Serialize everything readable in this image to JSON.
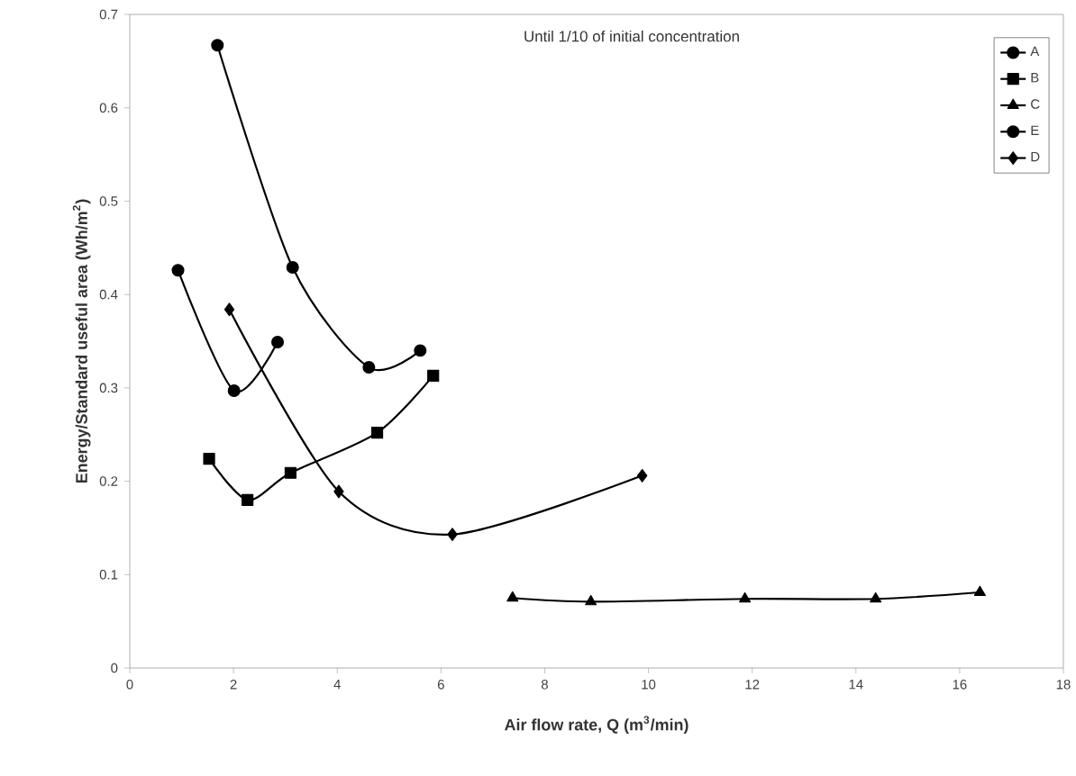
{
  "chart_data": {
    "type": "line",
    "xlabel": "Air flow rate, Q (m$^{3}$/min)",
    "ylabel": "Energy/Standard useful area (Wh/m$^{2}$)",
    "annotations": [
      "Until 1/10 of initial concentration"
    ],
    "xlim": [
      0,
      18
    ],
    "xticks": [
      0,
      2,
      4,
      6,
      8,
      10,
      12,
      14,
      16,
      18
    ],
    "ylim": [
      0,
      0.7
    ],
    "yticks": [
      0,
      0.1,
      0.2,
      0.3,
      0.4,
      0.5,
      0.6,
      0.7
    ],
    "grid": false,
    "legend": "top right",
    "series": [
      {
        "name": "A",
        "color": "#000000",
        "marker": "circle",
        "x": [
          0.93,
          2.01,
          2.85
        ],
        "values": [
          0.426,
          0.297,
          0.349
        ]
      },
      {
        "name": "B",
        "color": "#000000",
        "marker": "square",
        "x": [
          1.53,
          2.27,
          3.1,
          4.77,
          5.85
        ],
        "values": [
          0.224,
          0.18,
          0.209,
          0.252,
          0.313
        ]
      },
      {
        "name": "C",
        "color": "#000000",
        "marker": "triangle",
        "x": [
          7.38,
          8.89,
          11.86,
          14.38,
          16.39
        ],
        "values": [
          0.075,
          0.071,
          0.074,
          0.074,
          0.081
        ]
      },
      {
        "name": "E",
        "color": "#000000",
        "marker": "circle",
        "x": [
          1.69,
          3.14,
          4.61,
          5.6
        ],
        "values": [
          0.667,
          0.429,
          0.322,
          0.34
        ]
      },
      {
        "name": "D",
        "color": "#000000",
        "marker": "diamond",
        "x": [
          1.92,
          4.03,
          6.22,
          9.88
        ],
        "values": [
          0.384,
          0.189,
          0.143,
          0.206
        ]
      }
    ]
  }
}
